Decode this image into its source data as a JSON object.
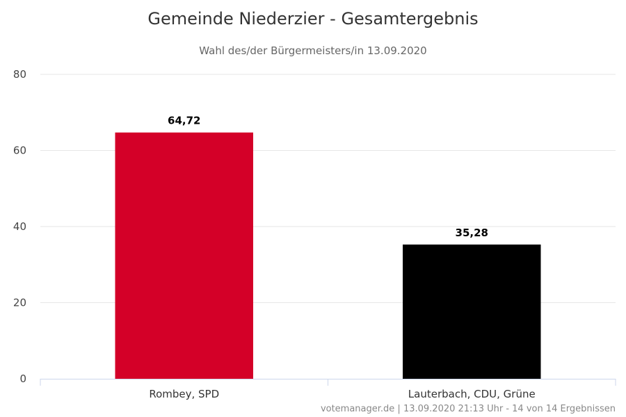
{
  "chart_data": {
    "type": "bar",
    "title": "Gemeinde Niederzier - Gesamtergebnis",
    "subtitle": "Wahl des/der Bürgermeisters/in 13.09.2020",
    "categories": [
      "Rombey, SPD",
      "Lauterbach, CDU, Grüne"
    ],
    "values": [
      64.72,
      35.28
    ],
    "data_labels": [
      "64,72",
      "35,28"
    ],
    "colors": [
      "#d40028",
      "#000000"
    ],
    "ylim": [
      0,
      80
    ],
    "yticks": [
      0,
      20,
      40,
      60,
      80
    ],
    "grid": true,
    "legend": "none"
  },
  "credits": "votemanager.de | 13.09.2020 21:13 Uhr - 14 von 14 Ergebnissen"
}
